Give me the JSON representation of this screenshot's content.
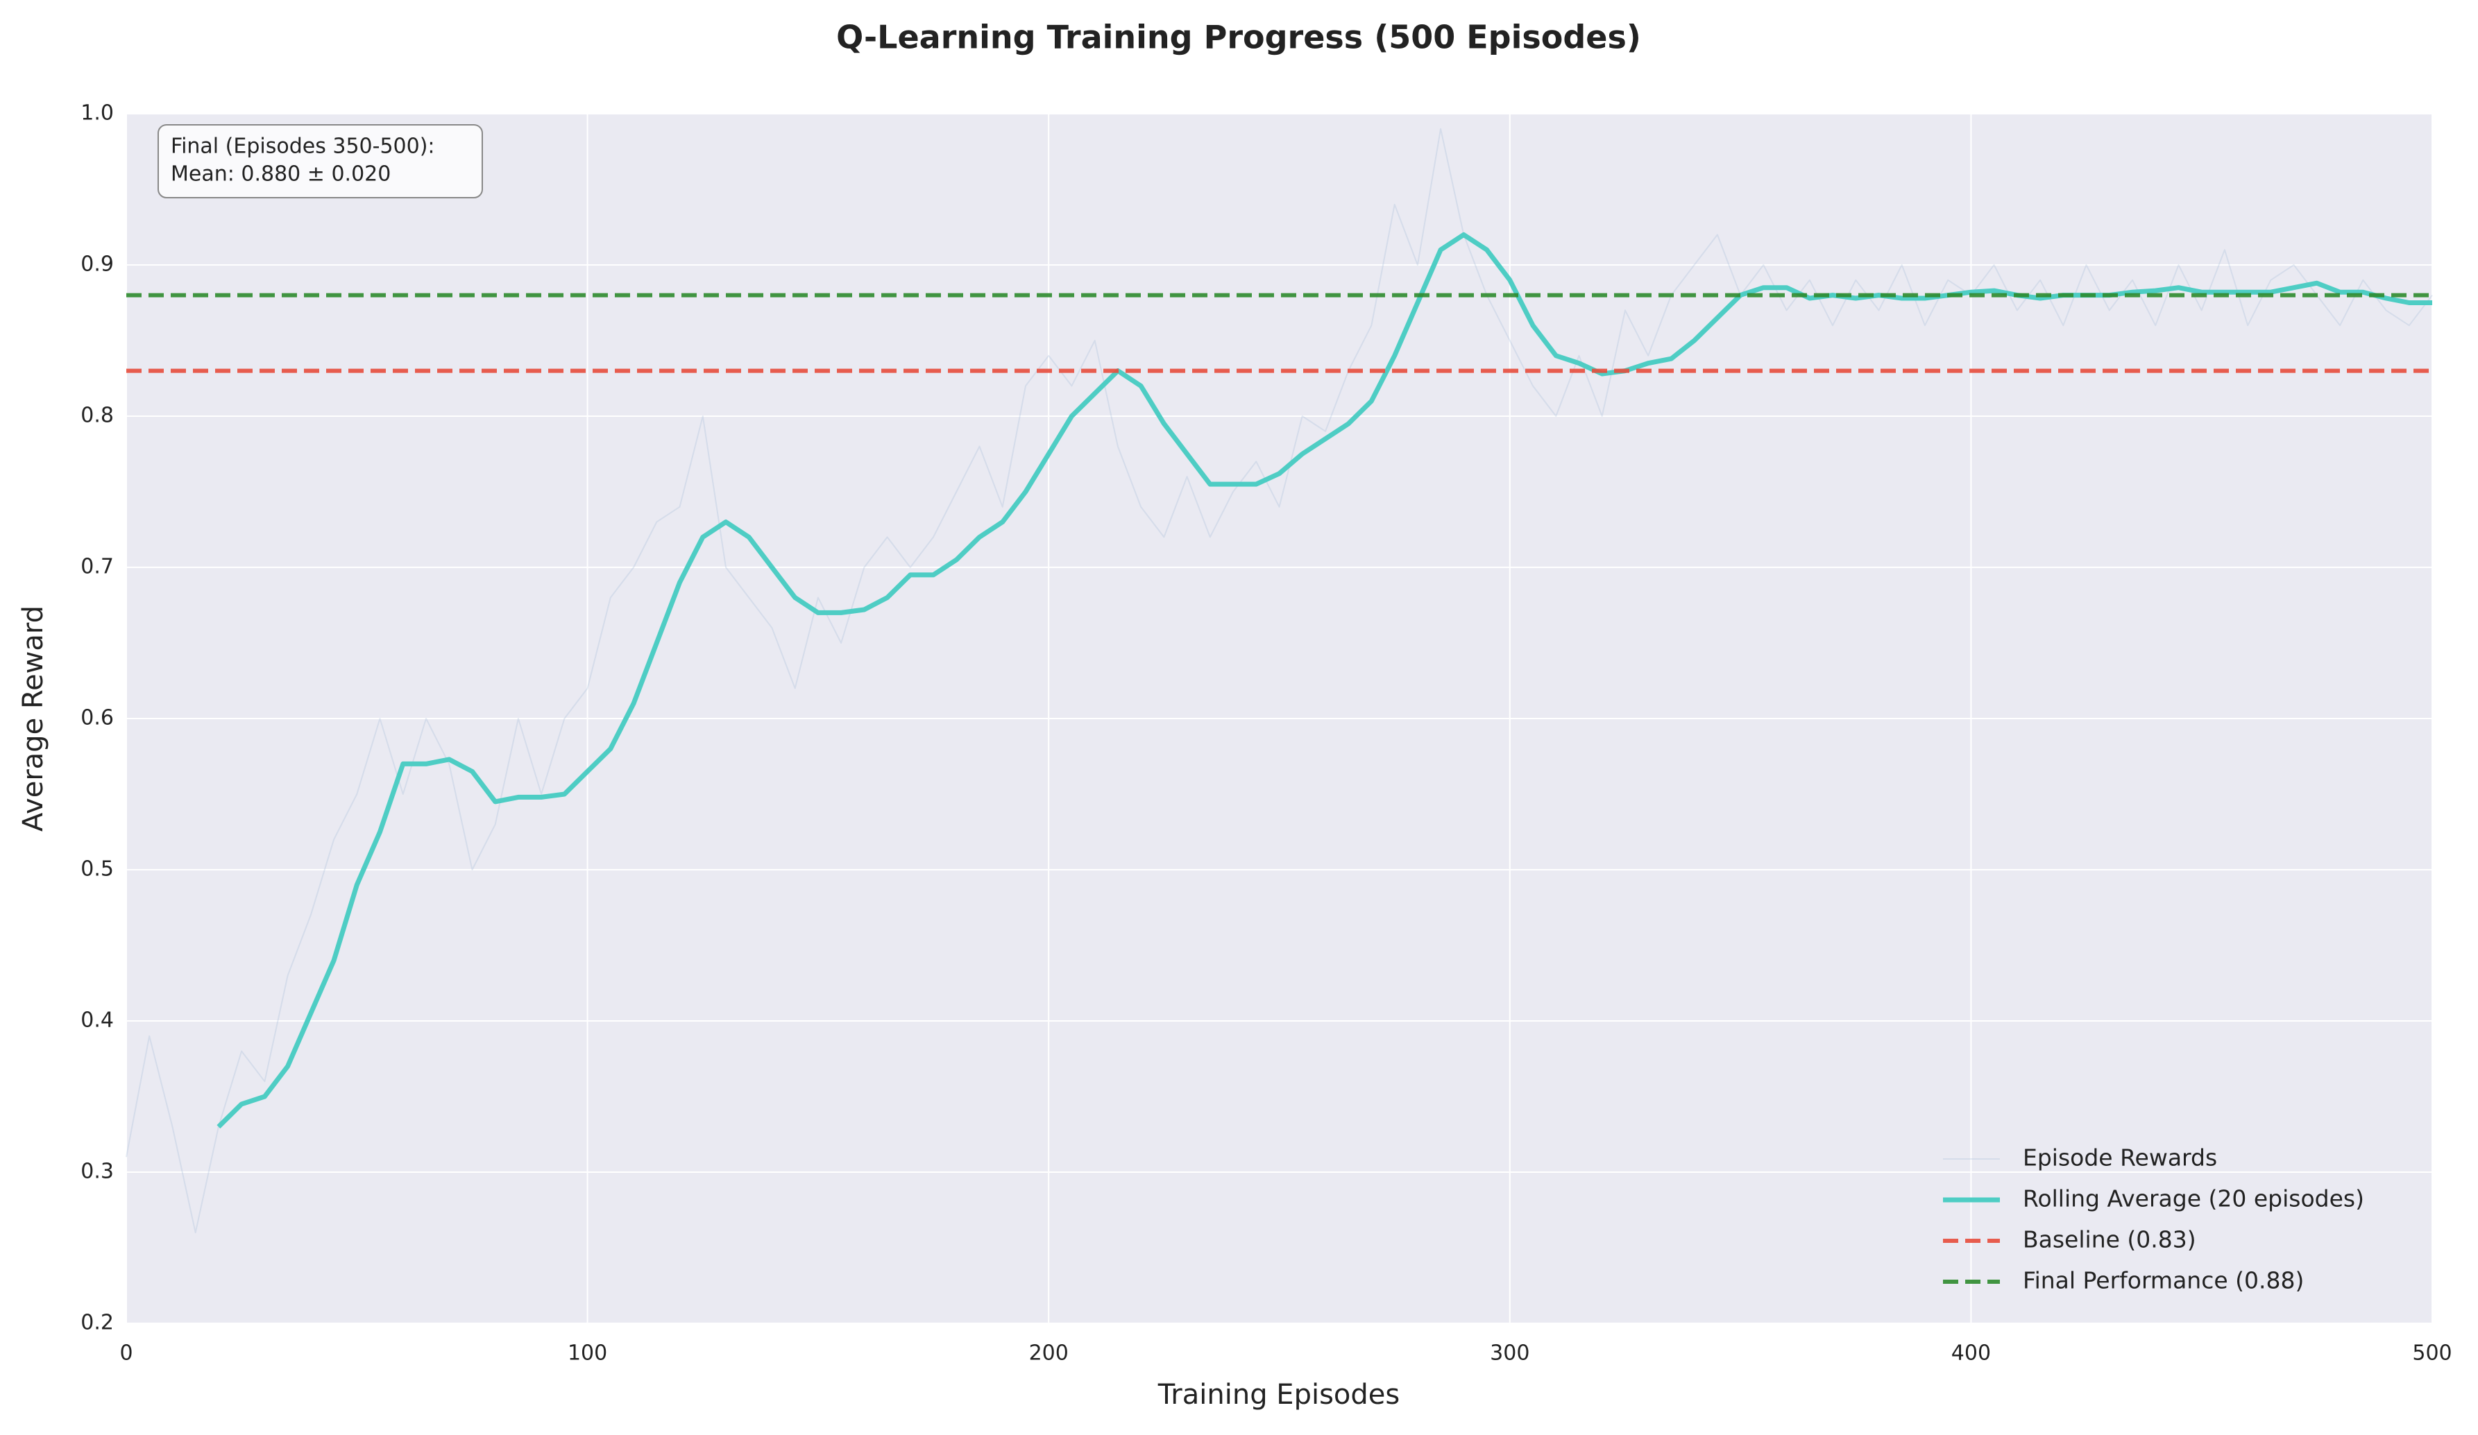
{
  "chart_data": {
    "type": "line",
    "title": "Q-Learning Training Progress (500 Episodes)",
    "x_label": "Training Episodes",
    "y_label": "Average Reward",
    "xlim": [
      0,
      500
    ],
    "xticks": [
      0,
      100,
      200,
      300,
      400,
      500
    ],
    "ylim": [
      0.2,
      1.0
    ],
    "yticks": [
      0.2,
      0.3,
      0.4,
      0.5,
      0.6,
      0.7,
      0.8,
      0.9,
      {
        "value": 1.0,
        "label": "1.0"
      }
    ],
    "grid": true,
    "legend": "lower right",
    "annotation": [
      "Final (Episodes 350-500):",
      "Mean: 0.880 ± 0.020"
    ],
    "series": [
      {
        "name": "Episode Rewards",
        "color": "#b0c4de",
        "x": [
          0,
          5,
          10,
          15,
          20,
          25,
          30,
          35,
          40,
          45,
          50,
          55,
          60,
          65,
          70,
          75,
          80,
          85,
          90,
          95,
          100,
          105,
          110,
          115,
          120,
          125,
          130,
          135,
          140,
          145,
          150,
          155,
          160,
          165,
          170,
          175,
          180,
          185,
          190,
          195,
          200,
          205,
          210,
          215,
          220,
          225,
          230,
          235,
          240,
          245,
          250,
          255,
          260,
          265,
          270,
          275,
          280,
          285,
          290,
          295,
          300,
          305,
          310,
          315,
          320,
          325,
          330,
          335,
          340,
          345,
          350,
          355,
          360,
          365,
          370,
          375,
          380,
          385,
          390,
          395,
          400,
          405,
          410,
          415,
          420,
          425,
          430,
          435,
          440,
          445,
          450,
          455,
          460,
          465,
          470,
          475,
          480,
          485,
          490,
          495,
          500
        ],
        "values": [
          0.31,
          0.39,
          0.33,
          0.26,
          0.33,
          0.38,
          0.36,
          0.43,
          0.47,
          0.52,
          0.55,
          0.6,
          0.55,
          0.6,
          0.57,
          0.5,
          0.53,
          0.6,
          0.55,
          0.6,
          0.62,
          0.68,
          0.7,
          0.73,
          0.74,
          0.8,
          0.7,
          0.68,
          0.66,
          0.62,
          0.68,
          0.65,
          0.7,
          0.72,
          0.7,
          0.72,
          0.75,
          0.78,
          0.74,
          0.82,
          0.84,
          0.82,
          0.85,
          0.78,
          0.74,
          0.72,
          0.76,
          0.72,
          0.75,
          0.77,
          0.74,
          0.8,
          0.79,
          0.83,
          0.86,
          0.94,
          0.9,
          0.99,
          0.92,
          0.88,
          0.85,
          0.82,
          0.8,
          0.84,
          0.8,
          0.87,
          0.84,
          0.88,
          0.9,
          0.92,
          0.88,
          0.9,
          0.87,
          0.89,
          0.86,
          0.89,
          0.87,
          0.9,
          0.86,
          0.89,
          0.88,
          0.9,
          0.87,
          0.89,
          0.86,
          0.9,
          0.87,
          0.89,
          0.86,
          0.9,
          0.87,
          0.91,
          0.86,
          0.89,
          0.9,
          0.88,
          0.86,
          0.89,
          0.87,
          0.86,
          0.88
        ]
      },
      {
        "name": "Rolling Average (20 episodes)",
        "color": "#4ecdc4",
        "x": [
          20,
          25,
          30,
          35,
          40,
          45,
          50,
          55,
          60,
          65,
          70,
          75,
          80,
          85,
          90,
          95,
          100,
          105,
          110,
          115,
          120,
          125,
          130,
          135,
          140,
          145,
          150,
          155,
          160,
          165,
          170,
          175,
          180,
          185,
          190,
          195,
          200,
          205,
          210,
          215,
          220,
          225,
          230,
          235,
          240,
          245,
          250,
          255,
          260,
          265,
          270,
          275,
          280,
          285,
          290,
          295,
          300,
          305,
          310,
          315,
          320,
          325,
          330,
          335,
          340,
          345,
          350,
          355,
          360,
          365,
          370,
          375,
          380,
          385,
          390,
          395,
          400,
          405,
          410,
          415,
          420,
          425,
          430,
          435,
          440,
          445,
          450,
          455,
          460,
          465,
          470,
          475,
          480,
          485,
          490,
          495,
          500
        ],
        "values": [
          0.33,
          0.345,
          0.35,
          0.37,
          0.405,
          0.44,
          0.49,
          0.525,
          0.57,
          0.57,
          0.573,
          0.565,
          0.545,
          0.548,
          0.548,
          0.55,
          0.565,
          0.58,
          0.61,
          0.65,
          0.69,
          0.72,
          0.73,
          0.72,
          0.7,
          0.68,
          0.67,
          0.67,
          0.672,
          0.68,
          0.695,
          0.695,
          0.705,
          0.72,
          0.73,
          0.75,
          0.775,
          0.8,
          0.815,
          0.83,
          0.82,
          0.795,
          0.775,
          0.755,
          0.755,
          0.755,
          0.762,
          0.775,
          0.785,
          0.795,
          0.81,
          0.84,
          0.875,
          0.91,
          0.92,
          0.91,
          0.89,
          0.86,
          0.84,
          0.835,
          0.828,
          0.83,
          0.835,
          0.838,
          0.85,
          0.865,
          0.88,
          0.885,
          0.885,
          0.878,
          0.88,
          0.878,
          0.88,
          0.878,
          0.878,
          0.88,
          0.882,
          0.883,
          0.88,
          0.878,
          0.88,
          0.88,
          0.88,
          0.882,
          0.883,
          0.885,
          0.882,
          0.882,
          0.882,
          0.882,
          0.885,
          0.888,
          0.882,
          0.882,
          0.878,
          0.875,
          0.875
        ]
      }
    ],
    "reference_lines": [
      {
        "name": "Baseline (0.83)",
        "color": "#e74c3c",
        "value": 0.83
      },
      {
        "name": "Final Performance (0.88)",
        "color": "#2e8b2e",
        "value": 0.88
      }
    ]
  }
}
